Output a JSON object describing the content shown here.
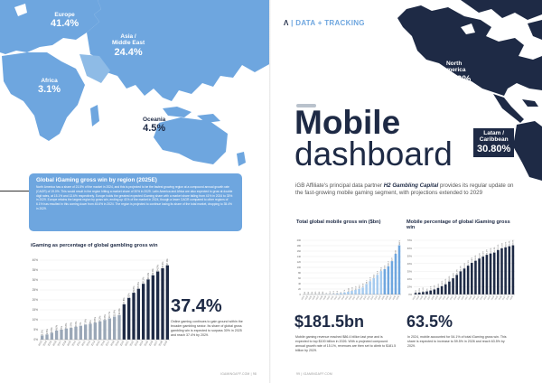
{
  "left_page": {
    "regions": [
      {
        "name": "Europe",
        "value": "41.4%"
      },
      {
        "name": "Asia / Middle East",
        "value": "24.4%"
      },
      {
        "name": "Africa",
        "value": "3.1%"
      },
      {
        "name": "Oceania",
        "value": "4.5%"
      }
    ],
    "callout": {
      "title": "Global iGaming gross win by region (2025E)",
      "text": "North America has a share of 21.5% of the market in 2024, and this is projected to be the fastest growing region at a compound annual growth rate (CAGR) of 19.0%. This would result in the region hitting a market share of 30% in 2029. Latin America and Africa are also expected to grow at double digit rates, at 15.1% and 13.6% respectively. Europe holds the greatest expected iGaming share with a market share falling from 41% in 2024 to 33% in 2029. Europe retains the largest region by gross win, ending up 41% of the market in 2024, though a lower CAGR compared to other regions of 6.1% has resulted in this coming down from 45.6% in 2024. The region is projected to continue losing its share of the total market, dropping to 35.4% in 2029."
    },
    "chart_title": "iGaming as percentage of global gambling gross win",
    "stat": {
      "value": "37.4%",
      "description": "Online gaming continues to gain ground within the broader gambling sector. Its share of global gross gambling win is expected to surpass 30% in 2025 and reach 37.4% by 2029."
    },
    "footer": "IGAMINGAFF.COM | 98"
  },
  "right_page": {
    "brand": {
      "mark": "Ʌ",
      "sep": "|",
      "label": "DATA + TRACKING"
    },
    "headline": {
      "line1": "Mobile",
      "line2": "dashboard"
    },
    "intro": {
      "pre": "iGB Affiliate's principal data partner ",
      "emph": "H2 Gambling Capital",
      "post": " provides its regular update on the fast-growing mobile gaming segment, with projections extended to 2029"
    },
    "regions": [
      {
        "name": "North America",
        "value": "66.10%"
      },
      {
        "name": "Latam / Caribbean",
        "value": "30.80%"
      }
    ],
    "chart1_title": "Total global mobile gross win ($bn)",
    "chart2_title": "Mobile percentage of global iGaming gross win",
    "stat1": {
      "value": "$181.5bn",
      "description": "Mobile gaming revenue reached $86.4 billion last year and is expected to top $100 billion in 2026. With a projected compound annual growth rate of 15.1%, revenues are then set to climb to $181.5 billion by 2029."
    },
    "stat2": {
      "value": "63.5%",
      "description": "In 2024, mobile accounted for 54.1% of total iGaming gross win. This share is expected to increase to 59.5% in 2026 and reach 63.5% by 2029."
    },
    "footer": "99 | IGAMINGAFF.COM"
  },
  "colors": {
    "navy": "#1e2a45",
    "light_blue": "#6ea6df",
    "pale_blue": "#9cc4ec",
    "grey": "#b9c2cc"
  },
  "chart_data": [
    {
      "type": "bar",
      "title": "iGaming as percentage of global gambling gross win",
      "categories": [
        "2003",
        "2004",
        "2005",
        "2006",
        "2007",
        "2008",
        "2009",
        "2010",
        "2011",
        "2012",
        "2013",
        "2014",
        "2015",
        "2016",
        "2017",
        "2018",
        "2019",
        "2020",
        "2021",
        "2022",
        "2023",
        "2024",
        "2025",
        "2026",
        "2027",
        "2028",
        "2029"
      ],
      "values": [
        2.1,
        2.6,
        3.5,
        4.6,
        5.0,
        5.6,
        5.9,
        6.5,
        7.0,
        7.6,
        8.0,
        8.6,
        9.2,
        9.9,
        10.7,
        11.6,
        12.4,
        17.8,
        21.0,
        23.6,
        25.6,
        28.1,
        30.3,
        32.4,
        34.3,
        35.9,
        37.4
      ],
      "highlight_from": "2020",
      "ylim": [
        0,
        40
      ],
      "yticks": [
        "0%",
        "5%",
        "10%",
        "15%",
        "20%",
        "25%",
        "30%",
        "35%",
        "40%"
      ]
    },
    {
      "type": "bar",
      "title": "Total global mobile gross win ($bn)",
      "categories": [
        "2003",
        "2004",
        "2005",
        "2006",
        "2007",
        "2008",
        "2009",
        "2010",
        "2011",
        "2012",
        "2013",
        "2014",
        "2015",
        "2016",
        "2017",
        "2018",
        "2019",
        "2020",
        "2021",
        "2022",
        "2023",
        "2024",
        "2025",
        "2026",
        "2027",
        "2028",
        "2029"
      ],
      "values": [
        0.2,
        0.3,
        0.4,
        0.5,
        0.6,
        0.8,
        1.0,
        1.4,
        2.1,
        3.2,
        5.0,
        7.4,
        10.1,
        13.2,
        16.9,
        20.9,
        25.8,
        38.7,
        49.3,
        60.2,
        72.6,
        86.4,
        93.5,
        104.1,
        123.0,
        150.0,
        181.5
      ],
      "ylim": [
        0,
        200
      ],
      "yticks": [
        "0",
        "20",
        "40",
        "60",
        "80",
        "100",
        "120",
        "140",
        "160",
        "180",
        "200"
      ]
    },
    {
      "type": "bar",
      "title": "Mobile percentage of global iGaming gross win",
      "categories": [
        "2003",
        "2004",
        "2005",
        "2006",
        "2007",
        "2008",
        "2009",
        "2010",
        "2011",
        "2012",
        "2013",
        "2014",
        "2015",
        "2016",
        "2017",
        "2018",
        "2019",
        "2020",
        "2021",
        "2022",
        "2023",
        "2024",
        "2025",
        "2026",
        "2027",
        "2028",
        "2029"
      ],
      "values": [
        2.0,
        2.5,
        3.2,
        4.0,
        5.1,
        6.5,
        8.4,
        10.6,
        13.2,
        16.8,
        20.9,
        25.3,
        29.9,
        33.5,
        37.2,
        40.8,
        43.6,
        46.4,
        48.9,
        51.2,
        52.9,
        54.1,
        57.4,
        59.5,
        60.9,
        62.3,
        63.5
      ],
      "ylim": [
        0,
        70
      ],
      "yticks": [
        "0%",
        "10%",
        "20%",
        "30%",
        "40%",
        "50%",
        "60%",
        "70%"
      ]
    }
  ]
}
